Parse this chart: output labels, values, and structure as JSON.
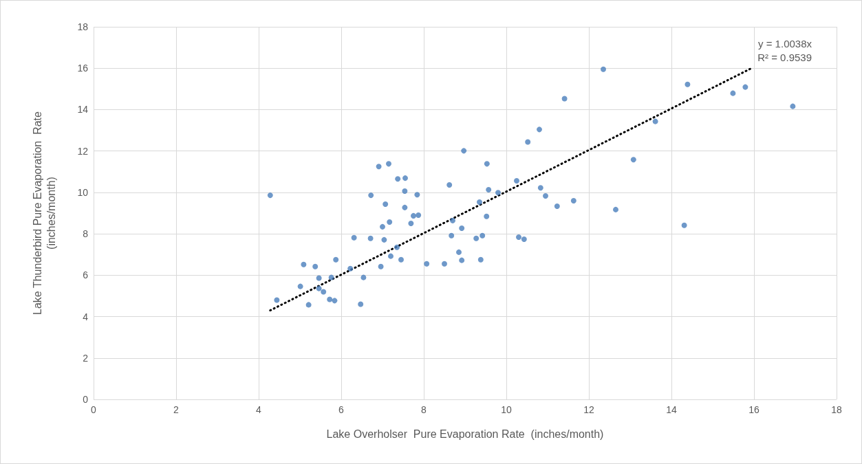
{
  "chart_data": {
    "type": "scatter",
    "xlabel": "Lake Overholser  Pure Evaporation Rate  (inches/month)",
    "ylabel": "Lake Thunderbird Pure Evaporation  Rate\n(inches/month)",
    "xlim": [
      0,
      18
    ],
    "xticks": [
      0,
      2,
      4,
      6,
      8,
      10,
      12,
      14,
      16,
      18
    ],
    "ylim": [
      0,
      18
    ],
    "yticks": [
      0,
      2,
      4,
      6,
      8,
      10,
      12,
      14,
      16,
      18
    ],
    "grid": true,
    "marker": "circle",
    "annotations": [
      "y = 1.0038x",
      "R² = 0.9539"
    ],
    "series": [
      {
        "color": "#4a7ebb",
        "x": [
          4.28,
          4.44,
          5.01,
          5.09,
          5.21,
          5.37,
          5.46,
          5.46,
          5.57,
          5.72,
          5.76,
          5.84,
          5.87,
          6.22,
          6.31,
          6.47,
          6.54,
          6.71,
          6.72,
          6.91,
          6.96,
          7.0,
          7.04,
          7.07,
          7.15,
          7.17,
          7.2,
          7.35,
          7.37,
          7.45,
          7.54,
          7.54,
          7.55,
          7.69,
          7.75,
          7.84,
          7.87,
          8.07,
          8.5,
          8.62,
          8.67,
          8.7,
          8.85,
          8.92,
          8.92,
          8.97,
          9.27,
          9.35,
          9.42,
          9.38,
          9.53,
          9.52,
          9.57,
          9.8,
          10.25,
          10.3,
          10.43,
          10.52,
          10.8,
          10.83,
          10.95,
          11.23,
          11.41,
          11.63,
          12.35,
          12.65,
          13.08,
          13.61,
          14.31,
          14.39,
          15.49,
          15.79,
          16.94
        ],
        "values": [
          9.86,
          4.8,
          5.46,
          6.52,
          4.57,
          6.42,
          5.86,
          5.36,
          5.2,
          4.83,
          5.89,
          4.77,
          6.75,
          6.32,
          7.81,
          4.6,
          5.89,
          7.78,
          9.86,
          11.25,
          6.42,
          8.34,
          7.71,
          9.43,
          11.38,
          8.57,
          6.92,
          7.35,
          10.65,
          6.75,
          10.06,
          9.27,
          10.69,
          8.5,
          8.87,
          9.89,
          8.9,
          6.55,
          6.55,
          10.36,
          7.91,
          8.64,
          7.11,
          8.27,
          6.72,
          12.01,
          7.78,
          9.53,
          7.91,
          6.75,
          11.38,
          8.84,
          10.13,
          9.99,
          10.56,
          7.84,
          7.74,
          12.44,
          13.04,
          10.22,
          9.83,
          9.33,
          14.53,
          9.6,
          15.95,
          9.17,
          11.58,
          13.43,
          8.41,
          15.22,
          14.79,
          15.09,
          14.16
        ]
      },
      {
        "type": "line",
        "color": "#000000",
        "line_style": "dotted",
        "marker": "none",
        "x": [
          4.28,
          15.97
        ],
        "values": [
          4.3,
          16.03
        ]
      }
    ]
  }
}
